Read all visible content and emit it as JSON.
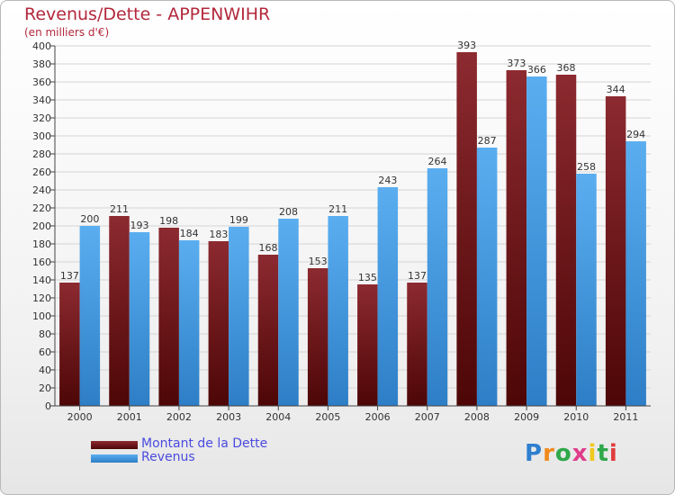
{
  "header": {
    "title": "Revenus/Dette - APPENWIHR",
    "subtitle": "(en milliers d'€)"
  },
  "legend": {
    "items": [
      {
        "label": "Montant de la Dette",
        "color": "#7a1f22"
      },
      {
        "label": "Revenus",
        "color": "#4b9fe0"
      }
    ]
  },
  "logo": {
    "text": "Proxiti",
    "letters": [
      "P",
      "r",
      "o",
      "x",
      "i",
      "t",
      "i"
    ],
    "colors": [
      "#2f7fd0",
      "#f08a1c",
      "#2fa84a",
      "#e03c8a",
      "#f0c81c",
      "#2fa84a",
      "#e03c3c"
    ]
  },
  "chart_data": {
    "type": "bar",
    "title": "Revenus/Dette - APPENWIHR",
    "ylabel": "(en milliers d'€)",
    "categories": [
      "2000",
      "2001",
      "2002",
      "2003",
      "2004",
      "2005",
      "2006",
      "2007",
      "2008",
      "2009",
      "2010",
      "2011"
    ],
    "series": [
      {
        "name": "Montant de la Dette",
        "color": "#7a1f22",
        "values": [
          137,
          211,
          198,
          183,
          168,
          153,
          135,
          137,
          393,
          373,
          368,
          344
        ]
      },
      {
        "name": "Revenus",
        "color": "#4b9fe0",
        "values": [
          200,
          193,
          184,
          199,
          208,
          211,
          243,
          264,
          287,
          366,
          258,
          294
        ]
      }
    ],
    "ylim": [
      0,
      400
    ],
    "ytick_step": 20,
    "grid": true,
    "legend_position": "bottom-left"
  }
}
